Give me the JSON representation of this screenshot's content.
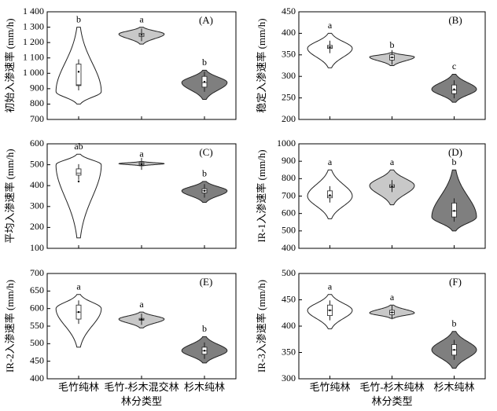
{
  "chart_data": [
    {
      "type": "violin",
      "panel": "(A)",
      "ylabel": "初始入渗速率 (mm/h)",
      "ylim": [
        700,
        1400
      ],
      "yticks": [
        700,
        800,
        900,
        {
          "value": 1000,
          "label": "1 000"
        },
        {
          "value": 1100,
          "label": "1 100"
        },
        {
          "value": 1200,
          "label": "1 200"
        },
        {
          "value": 1300,
          "label": "1 300"
        },
        {
          "value": 1400,
          "label": "1 400"
        }
      ],
      "violins": [
        {
          "min": 800,
          "max": 1300,
          "peak": 880,
          "q1": 920,
          "median": 925,
          "q3": 1060,
          "mean": 1010,
          "letter": "b",
          "color": "#ffffff"
        },
        {
          "min": 1190,
          "max": 1300,
          "peak": 1255,
          "q1": 1240,
          "median": 1250,
          "q3": 1260,
          "mean": 1250,
          "letter": "a",
          "color": "#c8c8c8"
        },
        {
          "min": 830,
          "max": 1020,
          "peak": 940,
          "q1": 910,
          "median": 940,
          "q3": 980,
          "mean": 945,
          "letter": "b",
          "color": "#7f7f7f"
        }
      ]
    },
    {
      "type": "violin",
      "panel": "(B)",
      "ylabel": "稳定入渗速率 (mm/h)",
      "ylim": [
        200,
        450
      ],
      "yticks": [
        200,
        250,
        300,
        350,
        400,
        450
      ],
      "violins": [
        {
          "min": 320,
          "max": 400,
          "peak": 365,
          "q1": 365,
          "median": 368,
          "q3": 372,
          "mean": 368,
          "letter": "a",
          "color": "#ffffff"
        },
        {
          "min": 325,
          "max": 355,
          "peak": 345,
          "q1": 338,
          "median": 344,
          "q3": 350,
          "mean": 344,
          "letter": "b",
          "color": "#c8c8c8"
        },
        {
          "min": 240,
          "max": 305,
          "peak": 270,
          "q1": 260,
          "median": 268,
          "q3": 280,
          "mean": 270,
          "letter": "c",
          "color": "#7f7f7f"
        }
      ]
    },
    {
      "type": "violin",
      "panel": "(C)",
      "ylabel": "平均入渗速率 (mm/h)",
      "ylim": [
        100,
        600
      ],
      "yticks": [
        100,
        200,
        300,
        400,
        500,
        600
      ],
      "violins": [
        {
          "min": 150,
          "max": 550,
          "peak": 500,
          "q1": 450,
          "median": 460,
          "q3": 480,
          "mean": 420,
          "letter": "ab",
          "color": "#ffffff"
        },
        {
          "min": 495,
          "max": 515,
          "peak": 505,
          "q1": 498,
          "median": 503,
          "q3": 510,
          "mean": 503,
          "letter": "a",
          "color": "#c8c8c8"
        },
        {
          "min": 320,
          "max": 420,
          "peak": 375,
          "q1": 365,
          "median": 375,
          "q3": 385,
          "mean": 375,
          "letter": "b",
          "color": "#7f7f7f"
        }
      ]
    },
    {
      "type": "violin",
      "panel": "(D)",
      "ylabel": "IR-1入渗速率 (mm/h)",
      "ylim": [
        400,
        1000
      ],
      "yticks": [
        400,
        500,
        600,
        700,
        800,
        900,
        1000
      ],
      "violins": [
        {
          "min": 570,
          "max": 850,
          "peak": 700,
          "q1": 690,
          "median": 700,
          "q3": 730,
          "mean": 705,
          "letter": "a",
          "color": "#ffffff"
        },
        {
          "min": 650,
          "max": 850,
          "peak": 760,
          "q1": 750,
          "median": 756,
          "q3": 765,
          "mean": 756,
          "letter": "a",
          "color": "#c8c8c8"
        },
        {
          "min": 500,
          "max": 850,
          "peak": 580,
          "q1": 580,
          "median": 615,
          "q3": 660,
          "mean": 615,
          "letter": "b",
          "color": "#7f7f7f"
        }
      ]
    },
    {
      "type": "violin",
      "panel": "(E)",
      "ylabel": "IR-2入渗速率 (mm/h)",
      "xlabel": "林分类型",
      "ylim": [
        400,
        700
      ],
      "yticks": [
        400,
        450,
        500,
        550,
        600,
        650,
        700
      ],
      "categories": [
        "毛竹纯林",
        "毛竹-杉木混交林",
        "杉木纯林"
      ],
      "violins": [
        {
          "min": 490,
          "max": 640,
          "peak": 600,
          "q1": 570,
          "median": 590,
          "q3": 610,
          "mean": 590,
          "letter": "a",
          "color": "#ffffff"
        },
        {
          "min": 545,
          "max": 590,
          "peak": 570,
          "q1": 567,
          "median": 569,
          "q3": 572,
          "mean": 569,
          "letter": "a",
          "color": "#c8c8c8"
        },
        {
          "min": 445,
          "max": 520,
          "peak": 480,
          "q1": 470,
          "median": 480,
          "q3": 490,
          "mean": 480,
          "letter": "b",
          "color": "#7f7f7f"
        }
      ]
    },
    {
      "type": "violin",
      "panel": "(F)",
      "ylabel": "IR-3入渗速率 (mm/h)",
      "xlabel": "林分类型",
      "ylim": [
        300,
        500
      ],
      "yticks": [
        300,
        350,
        400,
        450,
        500
      ],
      "categories": [
        "毛竹纯林",
        "毛竹-杉木纯林",
        "杉木纯林"
      ],
      "violins": [
        {
          "min": 395,
          "max": 460,
          "peak": 430,
          "q1": 420,
          "median": 430,
          "q3": 440,
          "mean": 430,
          "letter": "a",
          "color": "#ffffff"
        },
        {
          "min": 415,
          "max": 440,
          "peak": 425,
          "q1": 422,
          "median": 426,
          "q3": 430,
          "mean": 426,
          "letter": "a",
          "color": "#c8c8c8"
        },
        {
          "min": 320,
          "max": 390,
          "peak": 355,
          "q1": 345,
          "median": 355,
          "q3": 365,
          "mean": 355,
          "letter": "b",
          "color": "#7f7f7f"
        }
      ]
    }
  ]
}
